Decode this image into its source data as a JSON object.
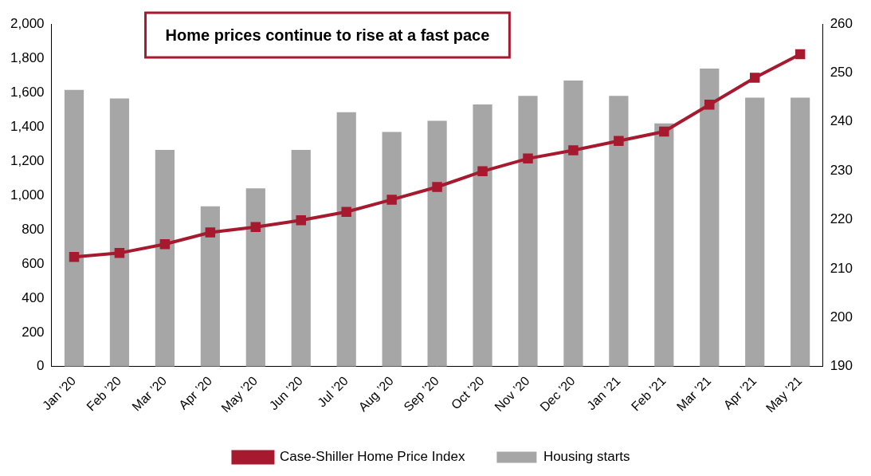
{
  "chart_data": {
    "type": "bar",
    "title": "Home prices continue to rise at a fast pace",
    "categories": [
      "Jan ’20",
      "Feb ’20",
      "Mar ’20",
      "Apr ’20",
      "May ’20",
      "Jun ’20",
      "Jul ’20",
      "Aug ’20",
      "Sep ’20",
      "Oct ’20",
      "Nov ’20",
      "Dec ’20",
      "Jan ’21",
      "Feb ’21",
      "Mar ’21",
      "Apr ’21",
      "May ’21"
    ],
    "series": [
      {
        "name": "Housing starts",
        "type": "bar",
        "color": "#a6a6a6",
        "values": [
          1615,
          1565,
          1265,
          935,
          1040,
          1265,
          1485,
          1370,
          1435,
          1530,
          1580,
          1670,
          1580,
          1420,
          1740,
          1570,
          1570
        ]
      },
      {
        "name": "Case-Shiller Home Price Index",
        "type": "line",
        "axis": "y2",
        "color": "#a6192e",
        "marker": "square",
        "line_style": "solid",
        "values": [
          212.4,
          213.2,
          215.0,
          217.4,
          218.5,
          219.9,
          221.6,
          224.1,
          226.7,
          229.9,
          232.5,
          234.2,
          236.1,
          238.0,
          243.5,
          249.0,
          253.8
        ]
      }
    ],
    "ylim": [
      0,
      2000
    ],
    "yticks": [
      0,
      200,
      400,
      600,
      800,
      {
        "value": 1000,
        "label": "1,000"
      },
      {
        "value": 1200,
        "label": "1,200"
      },
      {
        "value": 1400,
        "label": "1,400"
      },
      {
        "value": 1600,
        "label": "1,600"
      },
      {
        "value": 1800,
        "label": "1,800"
      },
      {
        "value": 2000,
        "label": "2,000"
      }
    ],
    "y2lim": [
      190,
      260
    ],
    "y2ticks": [
      190,
      200,
      210,
      220,
      230,
      240,
      250,
      260
    ],
    "grid": false,
    "legend": "bottom"
  }
}
